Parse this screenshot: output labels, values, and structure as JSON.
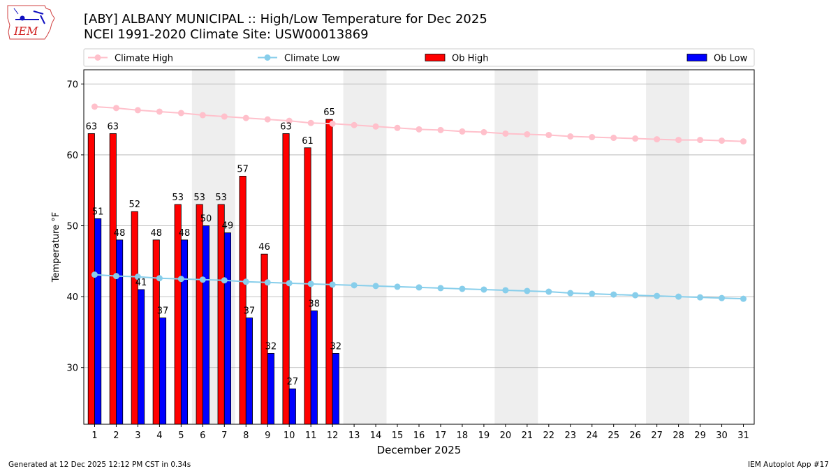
{
  "logo": {
    "text": "IEM"
  },
  "title": {
    "line1": "[ABY] ALBANY MUNICIPAL :: High/Low Temperature for Dec 2025",
    "line2": "NCEI 1991-2020 Climate Site: USW00013869"
  },
  "footer": {
    "left": "Generated at 12 Dec 2025 12:12 PM CST in 0.34s",
    "right": "IEM Autoplot App #17"
  },
  "colors": {
    "ob_high": "#ff0000",
    "ob_low": "#0000ff",
    "climate_high": "#ffc0cb",
    "climate_low": "#87ceeb",
    "weekend_shade": "#eeeeee"
  },
  "chart_data": {
    "type": "bar",
    "xlabel": "December 2025",
    "ylabel": "Temperature °F",
    "ylim": [
      22,
      72
    ],
    "yticks": [
      30,
      40,
      50,
      60,
      70
    ],
    "grid": true,
    "days": [
      1,
      2,
      3,
      4,
      5,
      6,
      7,
      8,
      9,
      10,
      11,
      12,
      13,
      14,
      15,
      16,
      17,
      18,
      19,
      20,
      21,
      22,
      23,
      24,
      25,
      26,
      27,
      28,
      29,
      30,
      31
    ],
    "shaded_days": [
      [
        6,
        7
      ],
      [
        13,
        14
      ],
      [
        20,
        21
      ],
      [
        27,
        28
      ]
    ],
    "legend": {
      "placement": "top",
      "entries": [
        "Climate High",
        "Climate Low",
        "Ob High",
        "Ob Low"
      ]
    },
    "series": [
      {
        "name": "Ob High",
        "kind": "bar",
        "values": [
          63,
          63,
          52,
          48,
          53,
          53,
          53,
          57,
          46,
          63,
          61,
          65
        ]
      },
      {
        "name": "Ob Low",
        "kind": "bar",
        "values": [
          51,
          48,
          41,
          37,
          48,
          50,
          49,
          37,
          32,
          27,
          38,
          32
        ]
      },
      {
        "name": "Climate High",
        "kind": "line",
        "values": [
          66.8,
          66.6,
          66.3,
          66.1,
          65.9,
          65.6,
          65.4,
          65.2,
          65.0,
          64.8,
          64.5,
          64.4,
          64.2,
          64.0,
          63.8,
          63.6,
          63.5,
          63.3,
          63.2,
          63.0,
          62.9,
          62.8,
          62.6,
          62.5,
          62.4,
          62.3,
          62.2,
          62.1,
          62.1,
          62.0,
          61.9
        ]
      },
      {
        "name": "Climate Low",
        "kind": "line",
        "values": [
          43.1,
          42.9,
          42.8,
          42.6,
          42.5,
          42.4,
          42.3,
          42.1,
          42.0,
          41.9,
          41.8,
          41.7,
          41.6,
          41.5,
          41.4,
          41.3,
          41.2,
          41.1,
          41.0,
          40.9,
          40.8,
          40.7,
          40.5,
          40.4,
          40.3,
          40.2,
          40.1,
          40.0,
          39.9,
          39.8,
          39.7
        ]
      }
    ]
  }
}
